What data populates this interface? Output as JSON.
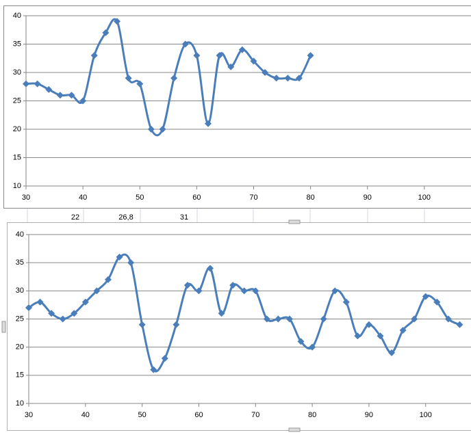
{
  "cells": [
    "22",
    "26,8",
    "31"
  ],
  "chart_data": [
    {
      "type": "line",
      "smooth": true,
      "color": "#4a7ebb",
      "x": [
        30,
        32,
        34,
        36,
        38,
        40,
        42,
        44,
        46,
        48,
        50,
        52,
        54,
        56,
        58,
        60,
        62,
        64,
        66,
        68,
        70,
        72,
        74,
        76,
        78,
        80
      ],
      "values": [
        28,
        28,
        27,
        26,
        26,
        25,
        33,
        37,
        39,
        29,
        28,
        20,
        20,
        29,
        35,
        33,
        21,
        33,
        31,
        34,
        32,
        30,
        29,
        29,
        29,
        33
      ],
      "xlim": [
        30,
        108.2
      ],
      "xticks": [
        30,
        40,
        50,
        60,
        70,
        80,
        90,
        100
      ],
      "ylim": [
        10,
        40
      ],
      "yticks": [
        10,
        15,
        20,
        25,
        30,
        35,
        40
      ],
      "grid": true
    },
    {
      "type": "line",
      "smooth": true,
      "color": "#4a7ebb",
      "x": [
        30,
        32,
        34,
        36,
        38,
        40,
        42,
        44,
        46,
        48,
        50,
        52,
        54,
        56,
        58,
        60,
        62,
        64,
        66,
        68,
        70,
        72,
        74,
        76,
        78,
        80,
        82,
        84,
        86,
        88,
        90,
        92,
        94,
        96,
        98,
        100,
        102,
        104,
        106
      ],
      "values": [
        27,
        28,
        26,
        25,
        26,
        28,
        30,
        32,
        36,
        35,
        24,
        16,
        18,
        24,
        31,
        30,
        34,
        26,
        31,
        30,
        30,
        25,
        25,
        25,
        21,
        20,
        25,
        30,
        28,
        22,
        24,
        22,
        19,
        23,
        25,
        29,
        28,
        25,
        24
      ],
      "xlim": [
        30,
        108
      ],
      "xticks": [
        30,
        40,
        50,
        60,
        70,
        80,
        90,
        100
      ],
      "ylim": [
        10,
        40
      ],
      "yticks": [
        10,
        15,
        20,
        25,
        30,
        35,
        40
      ],
      "grid": true
    }
  ]
}
